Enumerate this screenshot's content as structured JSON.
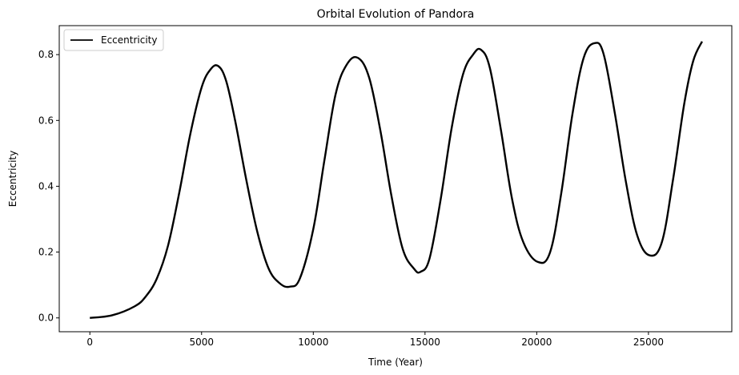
{
  "chart_data": {
    "type": "line",
    "title": "Orbital Evolution of Pandora",
    "xlabel": "Time (Year)",
    "ylabel": "Eccentricity",
    "xlim": [
      -1370,
      28730
    ],
    "ylim": [
      -0.042,
      0.888
    ],
    "xticks": [
      0,
      5000,
      10000,
      15000,
      20000,
      25000
    ],
    "xtick_labels": [
      "0",
      "5000",
      "10000",
      "15000",
      "20000",
      "25000"
    ],
    "yticks": [
      0.0,
      0.2,
      0.4,
      0.6,
      0.8
    ],
    "ytick_labels": [
      "0.0",
      "0.2",
      "0.4",
      "0.6",
      "0.8"
    ],
    "grid": false,
    "legend": {
      "position": "top-left"
    },
    "series": [
      {
        "name": "Eccentricity",
        "color": "#000000",
        "x": [
          0,
          1000,
          2000,
          2500,
          3000,
          3500,
          4000,
          4500,
          5000,
          5400,
          5750,
          6100,
          6500,
          7000,
          7500,
          8000,
          8500,
          8950,
          9400,
          10000,
          10500,
          11000,
          11500,
          12000,
          12500,
          13000,
          13500,
          14000,
          14500,
          14800,
          15200,
          15700,
          16200,
          16700,
          17150,
          17500,
          17900,
          18400,
          18900,
          19400,
          20050,
          20600,
          21100,
          21600,
          22100,
          22600,
          23000,
          23500,
          24000,
          24500,
          25050,
          25600,
          26100,
          26600,
          27000,
          27400
        ],
        "y": [
          0.0,
          0.008,
          0.035,
          0.065,
          0.12,
          0.22,
          0.38,
          0.56,
          0.7,
          0.755,
          0.765,
          0.72,
          0.6,
          0.42,
          0.26,
          0.15,
          0.105,
          0.095,
          0.12,
          0.27,
          0.48,
          0.68,
          0.77,
          0.79,
          0.73,
          0.57,
          0.37,
          0.21,
          0.15,
          0.14,
          0.18,
          0.36,
          0.58,
          0.74,
          0.8,
          0.815,
          0.76,
          0.57,
          0.36,
          0.23,
          0.17,
          0.2,
          0.38,
          0.62,
          0.79,
          0.835,
          0.8,
          0.62,
          0.41,
          0.25,
          0.19,
          0.23,
          0.42,
          0.65,
          0.78,
          0.84
        ]
      }
    ]
  }
}
